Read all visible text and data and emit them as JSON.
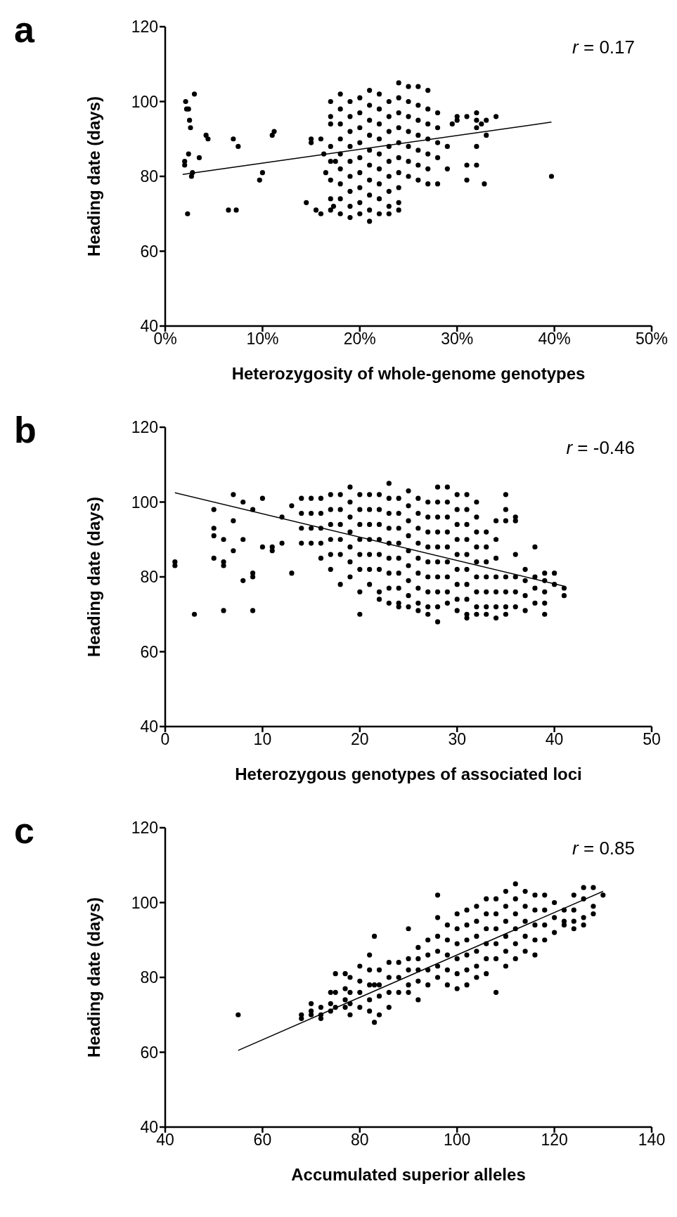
{
  "chart_data": [
    {
      "type": "scatter",
      "title": "a",
      "xlabel": "Heterozygosity of whole-genome genotypes",
      "ylabel": "Heading date (days)",
      "annotations": [
        "r = 0.17"
      ],
      "xlim": [
        0,
        0.5
      ],
      "ylim": [
        40,
        120
      ],
      "xticks": [
        {
          "value": 0,
          "label": "0%"
        },
        {
          "value": 0.1,
          "label": "10%"
        },
        {
          "value": 0.2,
          "label": "20%"
        },
        {
          "value": 0.3,
          "label": "30%"
        },
        {
          "value": 0.4,
          "label": "40%"
        },
        {
          "value": 0.5,
          "label": "50%"
        }
      ],
      "yticks": [
        40,
        60,
        80,
        100,
        120
      ],
      "series": [
        {
          "marker": "circle",
          "color": "#000000",
          "x": [
            0.02,
            0.02,
            0.021,
            0.022,
            0.024,
            0.025,
            0.026,
            0.024,
            0.027,
            0.028,
            0.023,
            0.03,
            0.035,
            0.042,
            0.044,
            0.07,
            0.075,
            0.065,
            0.073,
            0.097,
            0.1,
            0.11,
            0.112,
            0.145,
            0.15,
            0.15,
            0.155,
            0.16,
            0.16,
            0.163,
            0.165,
            0.17,
            0.173,
            0.175,
            0.17,
            0.17,
            0.17,
            0.17,
            0.17,
            0.17,
            0.17,
            0.18,
            0.18,
            0.18,
            0.18,
            0.18,
            0.18,
            0.18,
            0.18,
            0.18,
            0.19,
            0.19,
            0.19,
            0.19,
            0.19,
            0.19,
            0.19,
            0.19,
            0.19,
            0.2,
            0.2,
            0.2,
            0.2,
            0.2,
            0.2,
            0.2,
            0.2,
            0.2,
            0.21,
            0.21,
            0.21,
            0.21,
            0.21,
            0.21,
            0.21,
            0.21,
            0.21,
            0.21,
            0.22,
            0.22,
            0.22,
            0.22,
            0.22,
            0.22,
            0.22,
            0.22,
            0.22,
            0.23,
            0.23,
            0.23,
            0.23,
            0.23,
            0.23,
            0.23,
            0.23,
            0.23,
            0.24,
            0.24,
            0.24,
            0.24,
            0.24,
            0.24,
            0.24,
            0.24,
            0.24,
            0.24,
            0.25,
            0.25,
            0.25,
            0.25,
            0.25,
            0.25,
            0.25,
            0.26,
            0.26,
            0.26,
            0.26,
            0.26,
            0.26,
            0.26,
            0.27,
            0.27,
            0.27,
            0.27,
            0.27,
            0.27,
            0.27,
            0.28,
            0.28,
            0.28,
            0.28,
            0.29,
            0.29,
            0.295,
            0.3,
            0.3,
            0.31,
            0.31,
            0.31,
            0.32,
            0.32,
            0.32,
            0.32,
            0.32,
            0.325,
            0.328,
            0.33,
            0.33,
            0.34,
            0.397,
            0.28
          ],
          "values": [
            83,
            84,
            100,
            98,
            98,
            95,
            93,
            86,
            80,
            81,
            70,
            102,
            85,
            91,
            90,
            90,
            88,
            71,
            71,
            79,
            81,
            91,
            92,
            73,
            89,
            90,
            71,
            70,
            90,
            86,
            81,
            71,
            72,
            84,
            100,
            96,
            94,
            88,
            84,
            79,
            74,
            102,
            98,
            94,
            90,
            86,
            82,
            78,
            74,
            70,
            100,
            96,
            92,
            88,
            84,
            80,
            76,
            72,
            69,
            101,
            97,
            93,
            89,
            85,
            81,
            77,
            73,
            70,
            103,
            99,
            95,
            91,
            87,
            83,
            79,
            75,
            71,
            68,
            102,
            98,
            94,
            90,
            86,
            82,
            78,
            74,
            70,
            100,
            96,
            92,
            88,
            84,
            80,
            76,
            72,
            70,
            105,
            101,
            97,
            93,
            89,
            85,
            81,
            77,
            73,
            71,
            104,
            100,
            96,
            92,
            88,
            84,
            80,
            104,
            99,
            95,
            91,
            87,
            83,
            79,
            103,
            98,
            94,
            90,
            86,
            82,
            78,
            97,
            93,
            89,
            85,
            88,
            82,
            94,
            96,
            95,
            96,
            83,
            79,
            97,
            95,
            93,
            88,
            83,
            94,
            78,
            95,
            91,
            96,
            80,
            78
          ]
        },
        {
          "type": "line",
          "color": "#000000",
          "x": [
            0.018,
            0.397
          ],
          "values": [
            80.5,
            94.5
          ]
        }
      ]
    },
    {
      "type": "scatter",
      "title": "b",
      "xlabel": "Heterozygous genotypes of associated loci",
      "ylabel": "Heading date (days)",
      "annotations": [
        "r = -0.46"
      ],
      "xlim": [
        0,
        50
      ],
      "ylim": [
        40,
        120
      ],
      "xticks": [
        0,
        10,
        20,
        30,
        40,
        50
      ],
      "yticks": [
        40,
        60,
        80,
        100,
        120
      ],
      "series": [
        {
          "marker": "circle",
          "color": "#000000",
          "x": [
            1,
            1,
            3,
            5,
            5,
            5,
            5,
            6,
            6,
            6,
            6,
            7,
            7,
            7,
            8,
            8,
            8,
            9,
            9,
            9,
            9,
            10,
            10,
            11,
            11,
            12,
            12,
            13,
            13,
            14,
            14,
            14,
            14,
            15,
            15,
            15,
            15,
            16,
            16,
            16,
            16,
            16,
            17,
            17,
            17,
            17,
            17,
            17,
            18,
            18,
            18,
            18,
            18,
            18,
            19,
            19,
            19,
            19,
            19,
            19,
            19,
            20,
            20,
            20,
            20,
            20,
            20,
            20,
            20,
            21,
            21,
            21,
            21,
            21,
            21,
            21,
            22,
            22,
            22,
            22,
            22,
            22,
            22,
            22,
            23,
            23,
            23,
            23,
            23,
            23,
            23,
            23,
            23,
            24,
            24,
            24,
            24,
            24,
            24,
            24,
            24,
            24,
            25,
            25,
            25,
            25,
            25,
            25,
            25,
            25,
            25,
            26,
            26,
            26,
            26,
            26,
            26,
            26,
            26,
            26,
            27,
            27,
            27,
            27,
            27,
            27,
            27,
            27,
            27,
            28,
            28,
            28,
            28,
            28,
            28,
            28,
            28,
            28,
            28,
            29,
            29,
            29,
            29,
            29,
            29,
            29,
            29,
            29,
            30,
            30,
            30,
            30,
            30,
            30,
            30,
            30,
            30,
            31,
            31,
            31,
            31,
            31,
            31,
            31,
            31,
            31,
            31,
            32,
            32,
            32,
            32,
            32,
            32,
            32,
            32,
            32,
            33,
            33,
            33,
            33,
            33,
            33,
            33,
            34,
            34,
            34,
            34,
            34,
            34,
            34,
            35,
            35,
            35,
            35,
            35,
            35,
            35,
            36,
            36,
            36,
            36,
            36,
            36,
            37,
            37,
            37,
            37,
            38,
            38,
            38,
            38,
            39,
            39,
            39,
            39,
            39,
            40,
            40,
            41,
            41
          ],
          "values": [
            83,
            84,
            70,
            98,
            93,
            91,
            85,
            90,
            84,
            83,
            71,
            102,
            95,
            87,
            100,
            90,
            79,
            98,
            81,
            80,
            71,
            101,
            88,
            88,
            87,
            96,
            89,
            99,
            81,
            101,
            97,
            93,
            89,
            101,
            97,
            93,
            89,
            101,
            97,
            93,
            89,
            85,
            102,
            98,
            94,
            90,
            86,
            82,
            102,
            98,
            94,
            90,
            86,
            78,
            104,
            100,
            96,
            92,
            88,
            84,
            80,
            102,
            98,
            94,
            90,
            86,
            82,
            76,
            70,
            102,
            98,
            94,
            90,
            86,
            82,
            78,
            102,
            98,
            94,
            90,
            86,
            82,
            76,
            74,
            105,
            101,
            97,
            93,
            89,
            85,
            81,
            77,
            73,
            101,
            97,
            93,
            89,
            85,
            81,
            77,
            73,
            72,
            103,
            99,
            95,
            91,
            87,
            83,
            79,
            75,
            72,
            101,
            97,
            93,
            89,
            85,
            81,
            77,
            73,
            71,
            100,
            96,
            92,
            88,
            84,
            80,
            76,
            72,
            70,
            104,
            100,
            96,
            92,
            88,
            84,
            80,
            76,
            72,
            68,
            104,
            100,
            96,
            92,
            88,
            84,
            80,
            76,
            73,
            102,
            98,
            94,
            90,
            86,
            82,
            78,
            74,
            71,
            102,
            98,
            94,
            90,
            86,
            82,
            78,
            74,
            70,
            69,
            100,
            96,
            92,
            88,
            84,
            80,
            76,
            72,
            70,
            92,
            88,
            84,
            80,
            76,
            72,
            70,
            95,
            90,
            85,
            80,
            76,
            72,
            69,
            102,
            98,
            95,
            80,
            76,
            72,
            70,
            96,
            95,
            86,
            80,
            76,
            72,
            82,
            79,
            75,
            71,
            88,
            80,
            77,
            73,
            81,
            79,
            76,
            73,
            70,
            81,
            78,
            77,
            75
          ]
        },
        {
          "type": "line",
          "color": "#000000",
          "x": [
            1,
            41
          ],
          "values": [
            102.5,
            77.5
          ]
        }
      ]
    },
    {
      "type": "scatter",
      "title": "c",
      "xlabel": "Accumulated superior alleles",
      "ylabel": "Heading date (days)",
      "annotations": [
        "r = 0.85"
      ],
      "xlim": [
        40,
        140
      ],
      "ylim": [
        40,
        120
      ],
      "xticks": [
        40,
        60,
        80,
        100,
        120,
        140
      ],
      "yticks": [
        40,
        60,
        80,
        100,
        120
      ],
      "series": [
        {
          "marker": "circle",
          "color": "#000000",
          "x": [
            55,
            68,
            68,
            70,
            70,
            70,
            72,
            72,
            72,
            74,
            74,
            74,
            75,
            75,
            75,
            77,
            77,
            77,
            77,
            78,
            78,
            78,
            78,
            80,
            80,
            80,
            80,
            82,
            82,
            82,
            82,
            82,
            83,
            83,
            83,
            84,
            84,
            84,
            84,
            86,
            86,
            86,
            86,
            88,
            88,
            88,
            90,
            90,
            90,
            90,
            90,
            92,
            92,
            92,
            92,
            92,
            94,
            94,
            94,
            94,
            96,
            96,
            96,
            96,
            96,
            96,
            98,
            98,
            98,
            98,
            98,
            100,
            100,
            100,
            100,
            100,
            100,
            102,
            102,
            102,
            102,
            102,
            102,
            104,
            104,
            104,
            104,
            104,
            104,
            106,
            106,
            106,
            106,
            106,
            106,
            108,
            108,
            108,
            108,
            108,
            108,
            110,
            110,
            110,
            110,
            110,
            110,
            112,
            112,
            112,
            112,
            112,
            112,
            114,
            114,
            114,
            114,
            114,
            116,
            116,
            116,
            116,
            116,
            118,
            118,
            118,
            118,
            120,
            120,
            120,
            122,
            122,
            122,
            124,
            124,
            124,
            124,
            126,
            126,
            126,
            126,
            128,
            128,
            128,
            130
          ],
          "values": [
            70,
            70,
            69,
            73,
            71,
            70,
            72,
            70,
            69,
            76,
            73,
            71,
            81,
            76,
            72,
            81,
            77,
            74,
            72,
            80,
            76,
            73,
            70,
            83,
            79,
            76,
            72,
            86,
            82,
            78,
            74,
            71,
            91,
            78,
            68,
            82,
            78,
            75,
            70,
            84,
            80,
            76,
            72,
            84,
            80,
            76,
            93,
            85,
            82,
            78,
            76,
            88,
            85,
            82,
            79,
            74,
            90,
            86,
            82,
            78,
            102,
            96,
            91,
            87,
            83,
            80,
            94,
            90,
            86,
            82,
            78,
            97,
            93,
            89,
            85,
            81,
            77,
            98,
            94,
            90,
            86,
            82,
            78,
            99,
            95,
            91,
            87,
            83,
            80,
            101,
            97,
            93,
            89,
            85,
            81,
            101,
            97,
            93,
            89,
            85,
            76,
            103,
            99,
            95,
            91,
            87,
            83,
            105,
            101,
            97,
            93,
            89,
            85,
            103,
            99,
            95,
            91,
            87,
            102,
            98,
            94,
            90,
            86,
            102,
            98,
            94,
            90,
            100,
            96,
            92,
            98,
            95,
            94,
            102,
            98,
            95,
            93,
            104,
            101,
            96,
            94,
            104,
            99,
            97,
            102
          ]
        },
        {
          "type": "line",
          "color": "#000000",
          "x": [
            55,
            130
          ],
          "values": [
            60.5,
            103
          ]
        }
      ]
    }
  ]
}
